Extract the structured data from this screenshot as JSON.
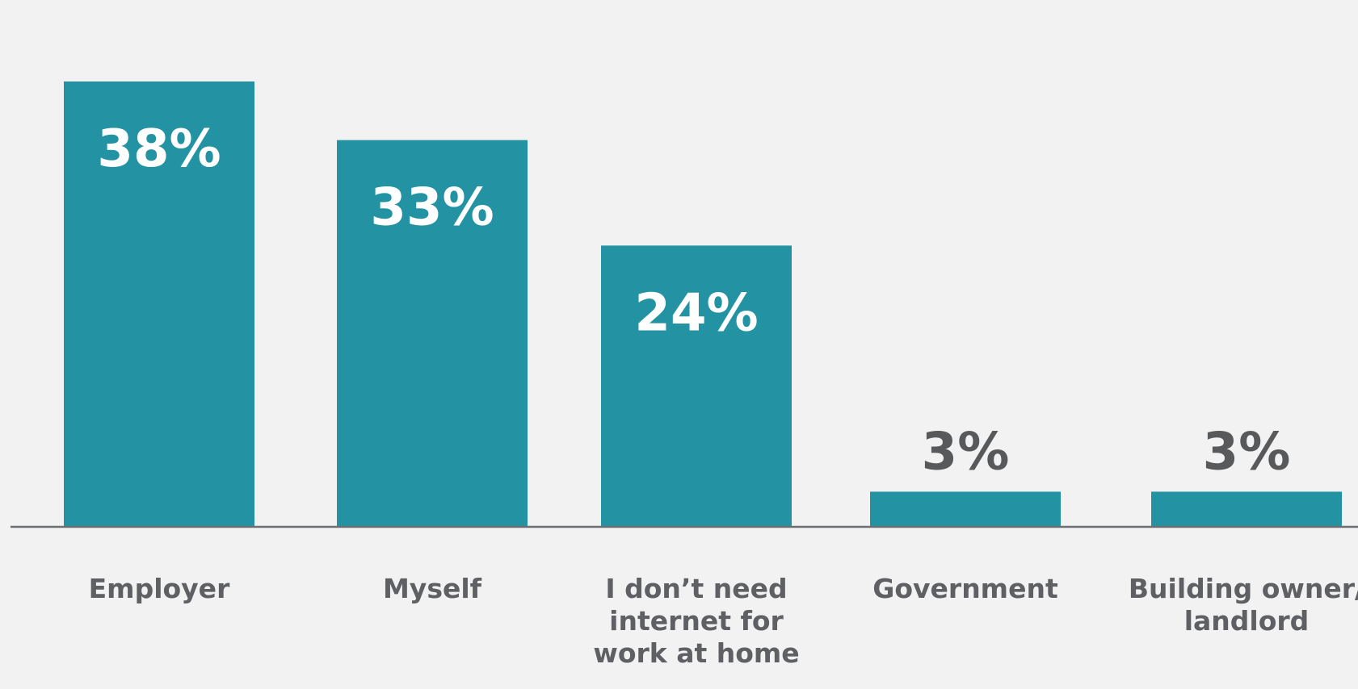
{
  "colors": {
    "background": "#f2f2f2",
    "bar": "#2393a3",
    "inside_label": "#ffffff",
    "outside_label": "#58595b",
    "category_label": "#5e6064",
    "baseline": "#6d6e71"
  },
  "chart_data": {
    "type": "bar",
    "title": "",
    "xlabel": "",
    "ylabel": "",
    "ylim": [
      0,
      38
    ],
    "grid": false,
    "categories": [
      [
        "Employer"
      ],
      [
        "Myself"
      ],
      [
        "I don’t need",
        "internet for",
        "work at home"
      ],
      [
        "Government"
      ],
      [
        "Building owner/",
        "landlord"
      ]
    ],
    "values": [
      38,
      33,
      24,
      3,
      3
    ],
    "value_labels": [
      "38%",
      "33%",
      "24%",
      "3%",
      "3%"
    ]
  }
}
